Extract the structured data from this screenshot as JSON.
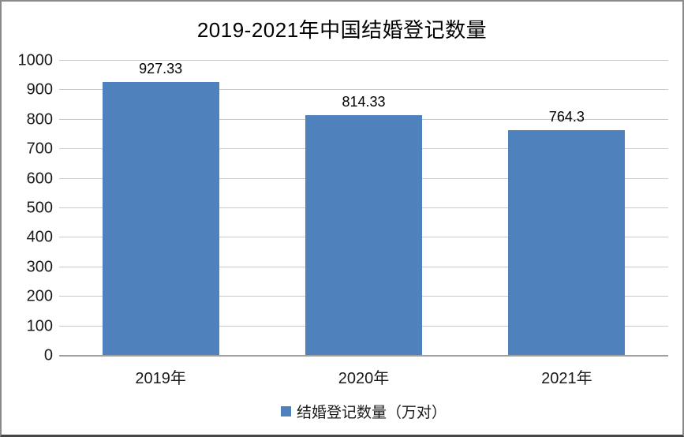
{
  "chart_data": {
    "type": "bar",
    "title": "2019-2021年中国结婚登记数量",
    "categories": [
      "2019年",
      "2020年",
      "2021年"
    ],
    "series": [
      {
        "name": "结婚登记数量（万对）",
        "values": [
          927.33,
          814.33,
          764.3
        ],
        "value_labels": [
          "927.33",
          "814.33",
          "764.3"
        ]
      }
    ],
    "xlabel": "",
    "ylabel": "",
    "ylim": [
      0,
      1000
    ],
    "ytick_step": 100,
    "grid": true,
    "legend_position": "bottom",
    "data_labels": "above-bars"
  },
  "colors": {
    "bar": "#4F81BD",
    "gridline": "#c9c9c9",
    "axis_line": "#9f9f9f",
    "frame_border": "#8a8a8a",
    "frame_border_bottom": "#454545",
    "background": "#ffffff",
    "text": "#000000"
  }
}
